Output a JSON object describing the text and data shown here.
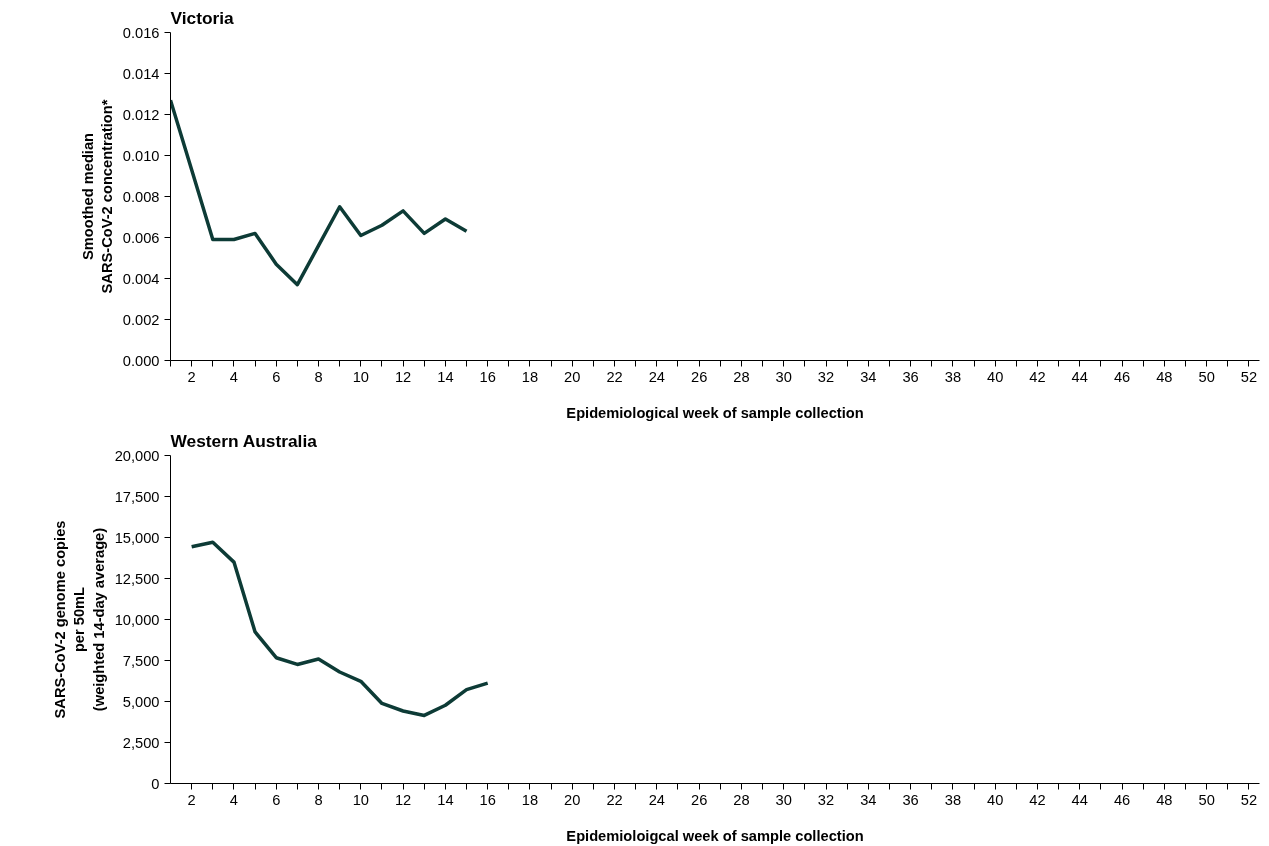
{
  "chart_data": [
    {
      "type": "line",
      "title": "Victoria",
      "xlabel": "Epidemiological week of sample collection",
      "ylabel": "Smoothed median\nSARS-CoV-2 concentration*",
      "x": [
        1,
        2,
        3,
        4,
        5,
        6,
        7,
        8,
        9,
        10,
        11,
        12,
        13,
        14,
        15
      ],
      "series": [
        {
          "color": "#0d3b36",
          "values": [
            0.0127,
            0.0093,
            0.0059,
            0.0059,
            0.0062,
            0.0047,
            0.0037,
            0.0056,
            0.0075,
            0.0061,
            0.0066,
            0.0073,
            0.0062,
            0.0069,
            0.0063
          ]
        }
      ],
      "xlim": [
        1,
        52.5
      ],
      "xticks": [
        {
          "value": 1,
          "label": null
        },
        2,
        {
          "value": 3,
          "label": null
        },
        4,
        {
          "value": 5,
          "label": null
        },
        6,
        {
          "value": 7,
          "label": null
        },
        8,
        {
          "value": 9,
          "label": null
        },
        10,
        {
          "value": 11,
          "label": null
        },
        12,
        {
          "value": 13,
          "label": null
        },
        14,
        {
          "value": 15,
          "label": null
        },
        16,
        {
          "value": 17,
          "label": null
        },
        18,
        {
          "value": 19,
          "label": null
        },
        20,
        {
          "value": 21,
          "label": null
        },
        22,
        {
          "value": 23,
          "label": null
        },
        24,
        {
          "value": 25,
          "label": null
        },
        26,
        {
          "value": 27,
          "label": null
        },
        28,
        {
          "value": 29,
          "label": null
        },
        30,
        {
          "value": 31,
          "label": null
        },
        32,
        {
          "value": 33,
          "label": null
        },
        34,
        {
          "value": 35,
          "label": null
        },
        36,
        {
          "value": 37,
          "label": null
        },
        38,
        {
          "value": 39,
          "label": null
        },
        40,
        {
          "value": 41,
          "label": null
        },
        42,
        {
          "value": 43,
          "label": null
        },
        44,
        {
          "value": 45,
          "label": null
        },
        46,
        {
          "value": 47,
          "label": null
        },
        48,
        {
          "value": 49,
          "label": null
        },
        50,
        {
          "value": 51,
          "label": null
        },
        52
      ],
      "ylim": [
        0,
        0.016
      ],
      "yticks": [
        {
          "value": 0,
          "label": "0.000"
        },
        {
          "value": 0.002,
          "label": "0.002"
        },
        {
          "value": 0.004,
          "label": "0.004"
        },
        {
          "value": 0.006,
          "label": "0.006"
        },
        {
          "value": 0.008,
          "label": "0.008"
        },
        {
          "value": 0.01,
          "label": "0.010"
        },
        {
          "value": 0.012,
          "label": "0.012"
        },
        {
          "value": 0.014,
          "label": "0.014"
        },
        {
          "value": 0.016,
          "label": "0.016"
        }
      ],
      "grid": false,
      "marker": "none",
      "line_style": "solid"
    },
    {
      "type": "line",
      "title": "Western Australia",
      "xlabel": "Epidemioloigcal week of sample collection",
      "ylabel": "SARS-CoV-2 genome copies\nper 50mL\n(weighted 14-day average)",
      "x": [
        2,
        3,
        4,
        5,
        6,
        7,
        8,
        9,
        10,
        11,
        12,
        13,
        14,
        15,
        16
      ],
      "series": [
        {
          "color": "#0d3b36",
          "values": [
            14440,
            14710,
            13500,
            9240,
            7670,
            7260,
            7590,
            6800,
            6230,
            4880,
            4420,
            4150,
            4770,
            5720,
            6120
          ]
        }
      ],
      "xlim": [
        1,
        52.5
      ],
      "xticks": [
        2,
        {
          "value": 3,
          "label": null
        },
        4,
        {
          "value": 5,
          "label": null
        },
        6,
        {
          "value": 7,
          "label": null
        },
        8,
        {
          "value": 9,
          "label": null
        },
        10,
        {
          "value": 11,
          "label": null
        },
        12,
        {
          "value": 13,
          "label": null
        },
        14,
        {
          "value": 15,
          "label": null
        },
        16,
        {
          "value": 17,
          "label": null
        },
        18,
        {
          "value": 19,
          "label": null
        },
        20,
        {
          "value": 21,
          "label": null
        },
        22,
        {
          "value": 23,
          "label": null
        },
        24,
        {
          "value": 25,
          "label": null
        },
        26,
        {
          "value": 27,
          "label": null
        },
        28,
        {
          "value": 29,
          "label": null
        },
        30,
        {
          "value": 31,
          "label": null
        },
        32,
        {
          "value": 33,
          "label": null
        },
        34,
        {
          "value": 35,
          "label": null
        },
        36,
        {
          "value": 37,
          "label": null
        },
        38,
        {
          "value": 39,
          "label": null
        },
        40,
        {
          "value": 41,
          "label": null
        },
        42,
        {
          "value": 43,
          "label": null
        },
        44,
        {
          "value": 45,
          "label": null
        },
        46,
        {
          "value": 47,
          "label": null
        },
        48,
        {
          "value": 49,
          "label": null
        },
        50,
        {
          "value": 51,
          "label": null
        },
        52
      ],
      "ylim": [
        0,
        20000
      ],
      "yticks": [
        0,
        {
          "value": 2500,
          "label": "2,500"
        },
        {
          "value": 5000,
          "label": "5,000"
        },
        {
          "value": 7500,
          "label": "7,500"
        },
        {
          "value": 10000,
          "label": "10,000"
        },
        {
          "value": 12500,
          "label": "12,500"
        },
        {
          "value": 15000,
          "label": "15,000"
        },
        {
          "value": 17500,
          "label": "17,500"
        },
        {
          "value": 20000,
          "label": "20,000"
        }
      ],
      "grid": false,
      "marker": "none",
      "line_style": "solid"
    }
  ]
}
